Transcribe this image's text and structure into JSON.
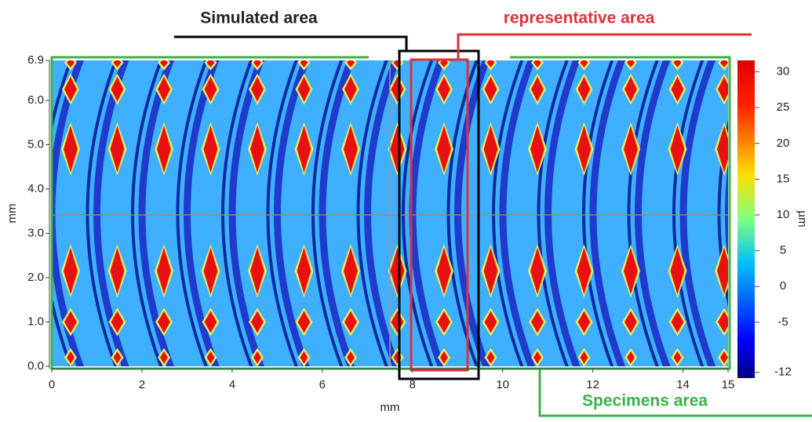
{
  "chart_data": {
    "type": "heatmap",
    "annotations": [
      "Simulated area",
      "representative area",
      "Specimens area"
    ],
    "x_label": "mm",
    "y_label": "mm",
    "xlim": [
      0,
      15
    ],
    "xticks": [
      0,
      2,
      4,
      6,
      8,
      10,
      12,
      14,
      15
    ],
    "ylim": [
      0,
      6.9
    ],
    "yticks": [
      {
        "value": 0,
        "label": "0.0"
      },
      {
        "value": 1,
        "label": "1.0"
      },
      {
        "value": 2,
        "label": "2.0"
      },
      {
        "value": 3,
        "label": "3.0"
      },
      {
        "value": 4,
        "label": "4.0"
      },
      {
        "value": 5,
        "label": "5.0"
      },
      {
        "value": 6,
        "label": "6.0"
      },
      6.9
    ],
    "colorbar": {
      "label": "µm",
      "lim": [
        -12.8,
        31.6
      ],
      "ticks": [
        30,
        25,
        20,
        15,
        10,
        5,
        0,
        -5,
        -12
      ]
    }
  }
}
